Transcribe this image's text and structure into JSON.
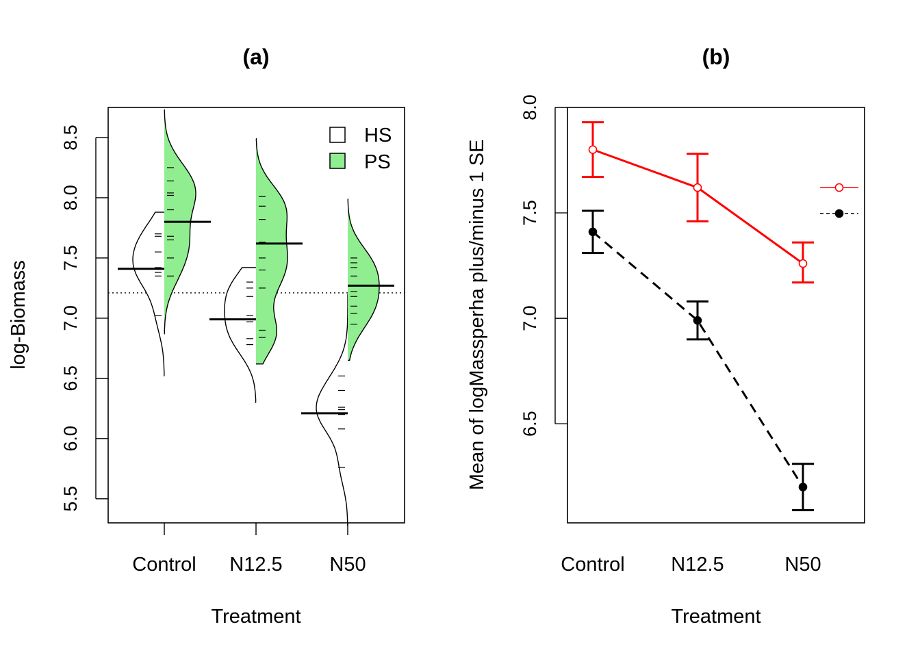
{
  "chart_data": [
    {
      "type": "beanplot",
      "title": "(a)",
      "xlabel": "Treatment",
      "ylabel": "log-Biomass",
      "categories": [
        "Control",
        "N12.5",
        "N50"
      ],
      "ylim": [
        5.3,
        8.75
      ],
      "yticks": [
        "5.5",
        "6.0",
        "6.5",
        "7.0",
        "7.5",
        "8.0",
        "8.5"
      ],
      "overall_mean": 7.21,
      "legend": {
        "position": "top-right",
        "entries": [
          {
            "name": "HS",
            "color": "#ffffff"
          },
          {
            "name": "PS",
            "color": "#90ee90"
          }
        ]
      },
      "series": [
        {
          "name": "HS",
          "side": "left",
          "fill": "#ffffff",
          "means": [
            7.41,
            6.99,
            6.21
          ],
          "observations": [
            [
              7.02,
              7.35,
              7.38,
              7.42,
              7.55,
              7.68,
              7.7
            ],
            [
              6.78,
              6.83,
              6.97,
              7.02,
              7.18,
              7.25,
              7.3
            ],
            [
              5.76,
              6.08,
              6.2,
              6.24,
              6.26,
              6.4,
              6.52
            ]
          ],
          "ranges": [
            [
              6.52,
              7.88
            ],
            [
              6.3,
              7.42
            ],
            [
              5.28,
              7.2
            ]
          ]
        },
        {
          "name": "PS",
          "side": "right",
          "fill": "#90ee90",
          "means": [
            7.8,
            7.62,
            7.27
          ],
          "observations": [
            [
              7.35,
              7.5,
              7.65,
              7.68,
              7.9,
              8.02,
              8.04,
              8.14,
              8.25
            ],
            [
              6.84,
              6.9,
              7.25,
              7.4,
              7.5,
              7.63,
              7.82,
              7.93,
              8.01
            ],
            [
              6.95,
              7.04,
              7.1,
              7.18,
              7.22,
              7.35,
              7.42,
              7.46,
              7.5
            ]
          ],
          "ranges": [
            [
              6.87,
              8.73
            ],
            [
              6.62,
              8.49
            ],
            [
              6.65,
              7.99
            ]
          ]
        }
      ]
    },
    {
      "type": "line",
      "title": "(b)",
      "xlabel": "Treatment",
      "ylabel": "Mean of  logMassperha plus/minus 1 SE",
      "categories": [
        "Control",
        "N12.5",
        "N50"
      ],
      "ylim": [
        6.03,
        8.0
      ],
      "yticks": [
        "6.5",
        "7.0",
        "7.5",
        "8.0"
      ],
      "series": [
        {
          "color": "#ff0000",
          "linestyle": "solid",
          "marker": "open-circle",
          "means": [
            7.8,
            7.62,
            7.26
          ],
          "se_low": [
            7.67,
            7.46,
            7.17
          ],
          "se_high": [
            7.93,
            7.78,
            7.36
          ]
        },
        {
          "color": "#000000",
          "linestyle": "dashed",
          "marker": "filled-circle",
          "means": [
            7.41,
            6.99,
            6.2
          ],
          "se_low": [
            7.31,
            6.9,
            6.09
          ],
          "se_high": [
            7.51,
            7.08,
            6.31
          ]
        }
      ]
    }
  ]
}
